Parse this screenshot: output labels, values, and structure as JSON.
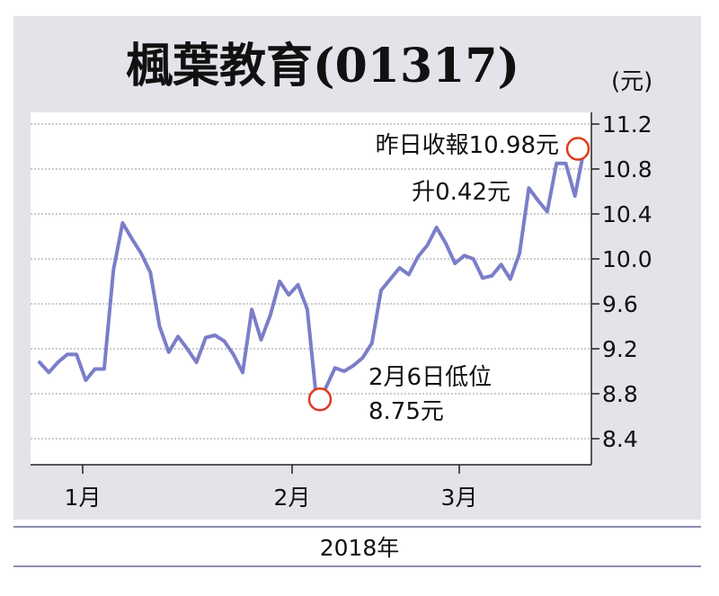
{
  "chart_data": {
    "type": "line",
    "title": "楓葉教育(01317)",
    "unit": "(元)",
    "xlabel": "2018年",
    "x_ticks": [
      "1月",
      "2月",
      "3月"
    ],
    "yticks": [
      "11.2",
      "10.8",
      "10.4",
      "10.0",
      "9.6",
      "9.2",
      "8.8",
      "8.4"
    ],
    "ylim": [
      8.2,
      11.3
    ],
    "grid": true,
    "series": [
      {
        "color": "#7b7ec8",
        "values": [
          9.08,
          8.99,
          9.08,
          9.15,
          9.15,
          8.92,
          9.02,
          9.02,
          9.9,
          10.32,
          10.18,
          10.05,
          9.88,
          9.4,
          9.17,
          9.31,
          9.2,
          9.08,
          9.3,
          9.32,
          9.27,
          9.15,
          8.99,
          9.55,
          9.28,
          9.5,
          9.8,
          9.68,
          9.77,
          9.55,
          8.75,
          8.85,
          9.03,
          9.0,
          9.05,
          9.12,
          9.25,
          9.72,
          9.82,
          9.92,
          9.86,
          10.02,
          10.12,
          10.28,
          10.14,
          9.96,
          10.03,
          10.0,
          9.83,
          9.85,
          9.95,
          9.82,
          10.05,
          10.63,
          10.52,
          10.42,
          10.85,
          10.85,
          10.56,
          10.98
        ]
      }
    ],
    "annotations": [
      {
        "text_lines": [
          "昨日收報10.98元",
          "升0.42元"
        ],
        "value": 10.98
      },
      {
        "text_lines": [
          "2月6日低位",
          "8.75元"
        ],
        "value": 8.75
      }
    ]
  }
}
